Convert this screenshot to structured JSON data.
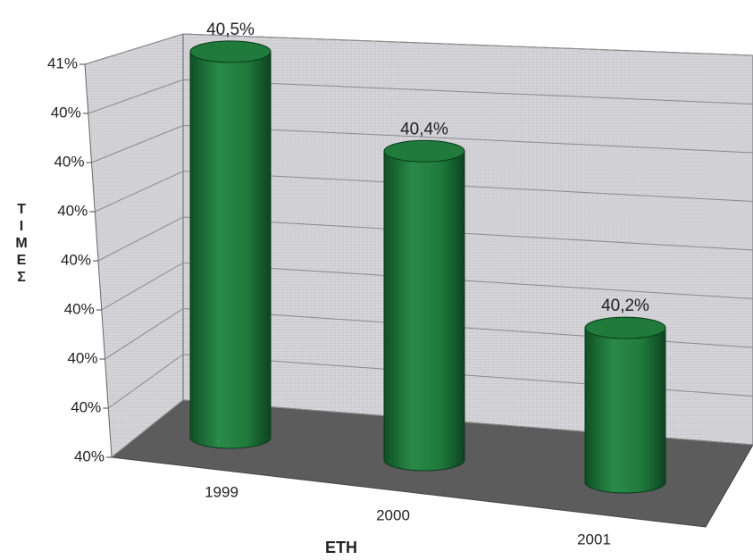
{
  "chart_data": {
    "type": "bar",
    "categories": [
      "1999",
      "2000",
      "2001"
    ],
    "values": [
      40.5,
      40.4,
      40.2
    ],
    "value_labels": [
      "40,5%",
      "40,4%",
      "40,2%"
    ],
    "color": "#1f7a3c",
    "ylim": [
      40,
      40.56
    ],
    "yticks": [
      {
        "value": 40,
        "label": "40%"
      },
      {
        "value": 40.07,
        "label": "40%"
      },
      {
        "value": 40.14,
        "label": "40%"
      },
      {
        "value": 40.21,
        "label": "40%"
      },
      {
        "value": 40.28,
        "label": "40%"
      },
      {
        "value": 40.35,
        "label": "40%"
      },
      {
        "value": 40.42,
        "label": "40%"
      },
      {
        "value": 40.49,
        "label": "40%"
      },
      {
        "value": 40.56,
        "label": "41%"
      }
    ],
    "grid": true,
    "x_label": "ΕΤΗ",
    "y_label": "ΤΙΜΕΣ"
  }
}
